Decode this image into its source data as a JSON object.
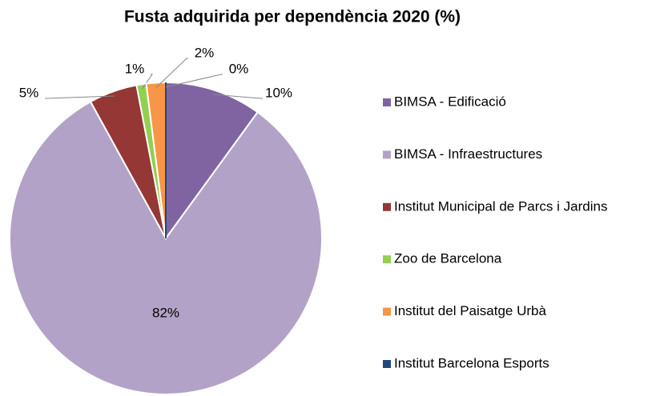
{
  "chart_data": {
    "type": "pie",
    "title": "Fusta adquirida per dependència 2020 (%)",
    "categories": [
      "BIMSA - Edificació",
      "BIMSA - Infraestructures",
      "Institut Municipal de Parcs i Jardins",
      "Zoo de Barcelona",
      "Institut del Paisatge Urbà",
      "Institut Barcelona Esports"
    ],
    "values": [
      10,
      82,
      5,
      1,
      2,
      0
    ],
    "value_labels": [
      "10%",
      "82%",
      "5%",
      "1%",
      "2%",
      "0%"
    ],
    "colors": [
      "#8064a2",
      "#b3a2c7",
      "#953735",
      "#92d050",
      "#f79646",
      "#1f497d"
    ],
    "legend": "right"
  }
}
